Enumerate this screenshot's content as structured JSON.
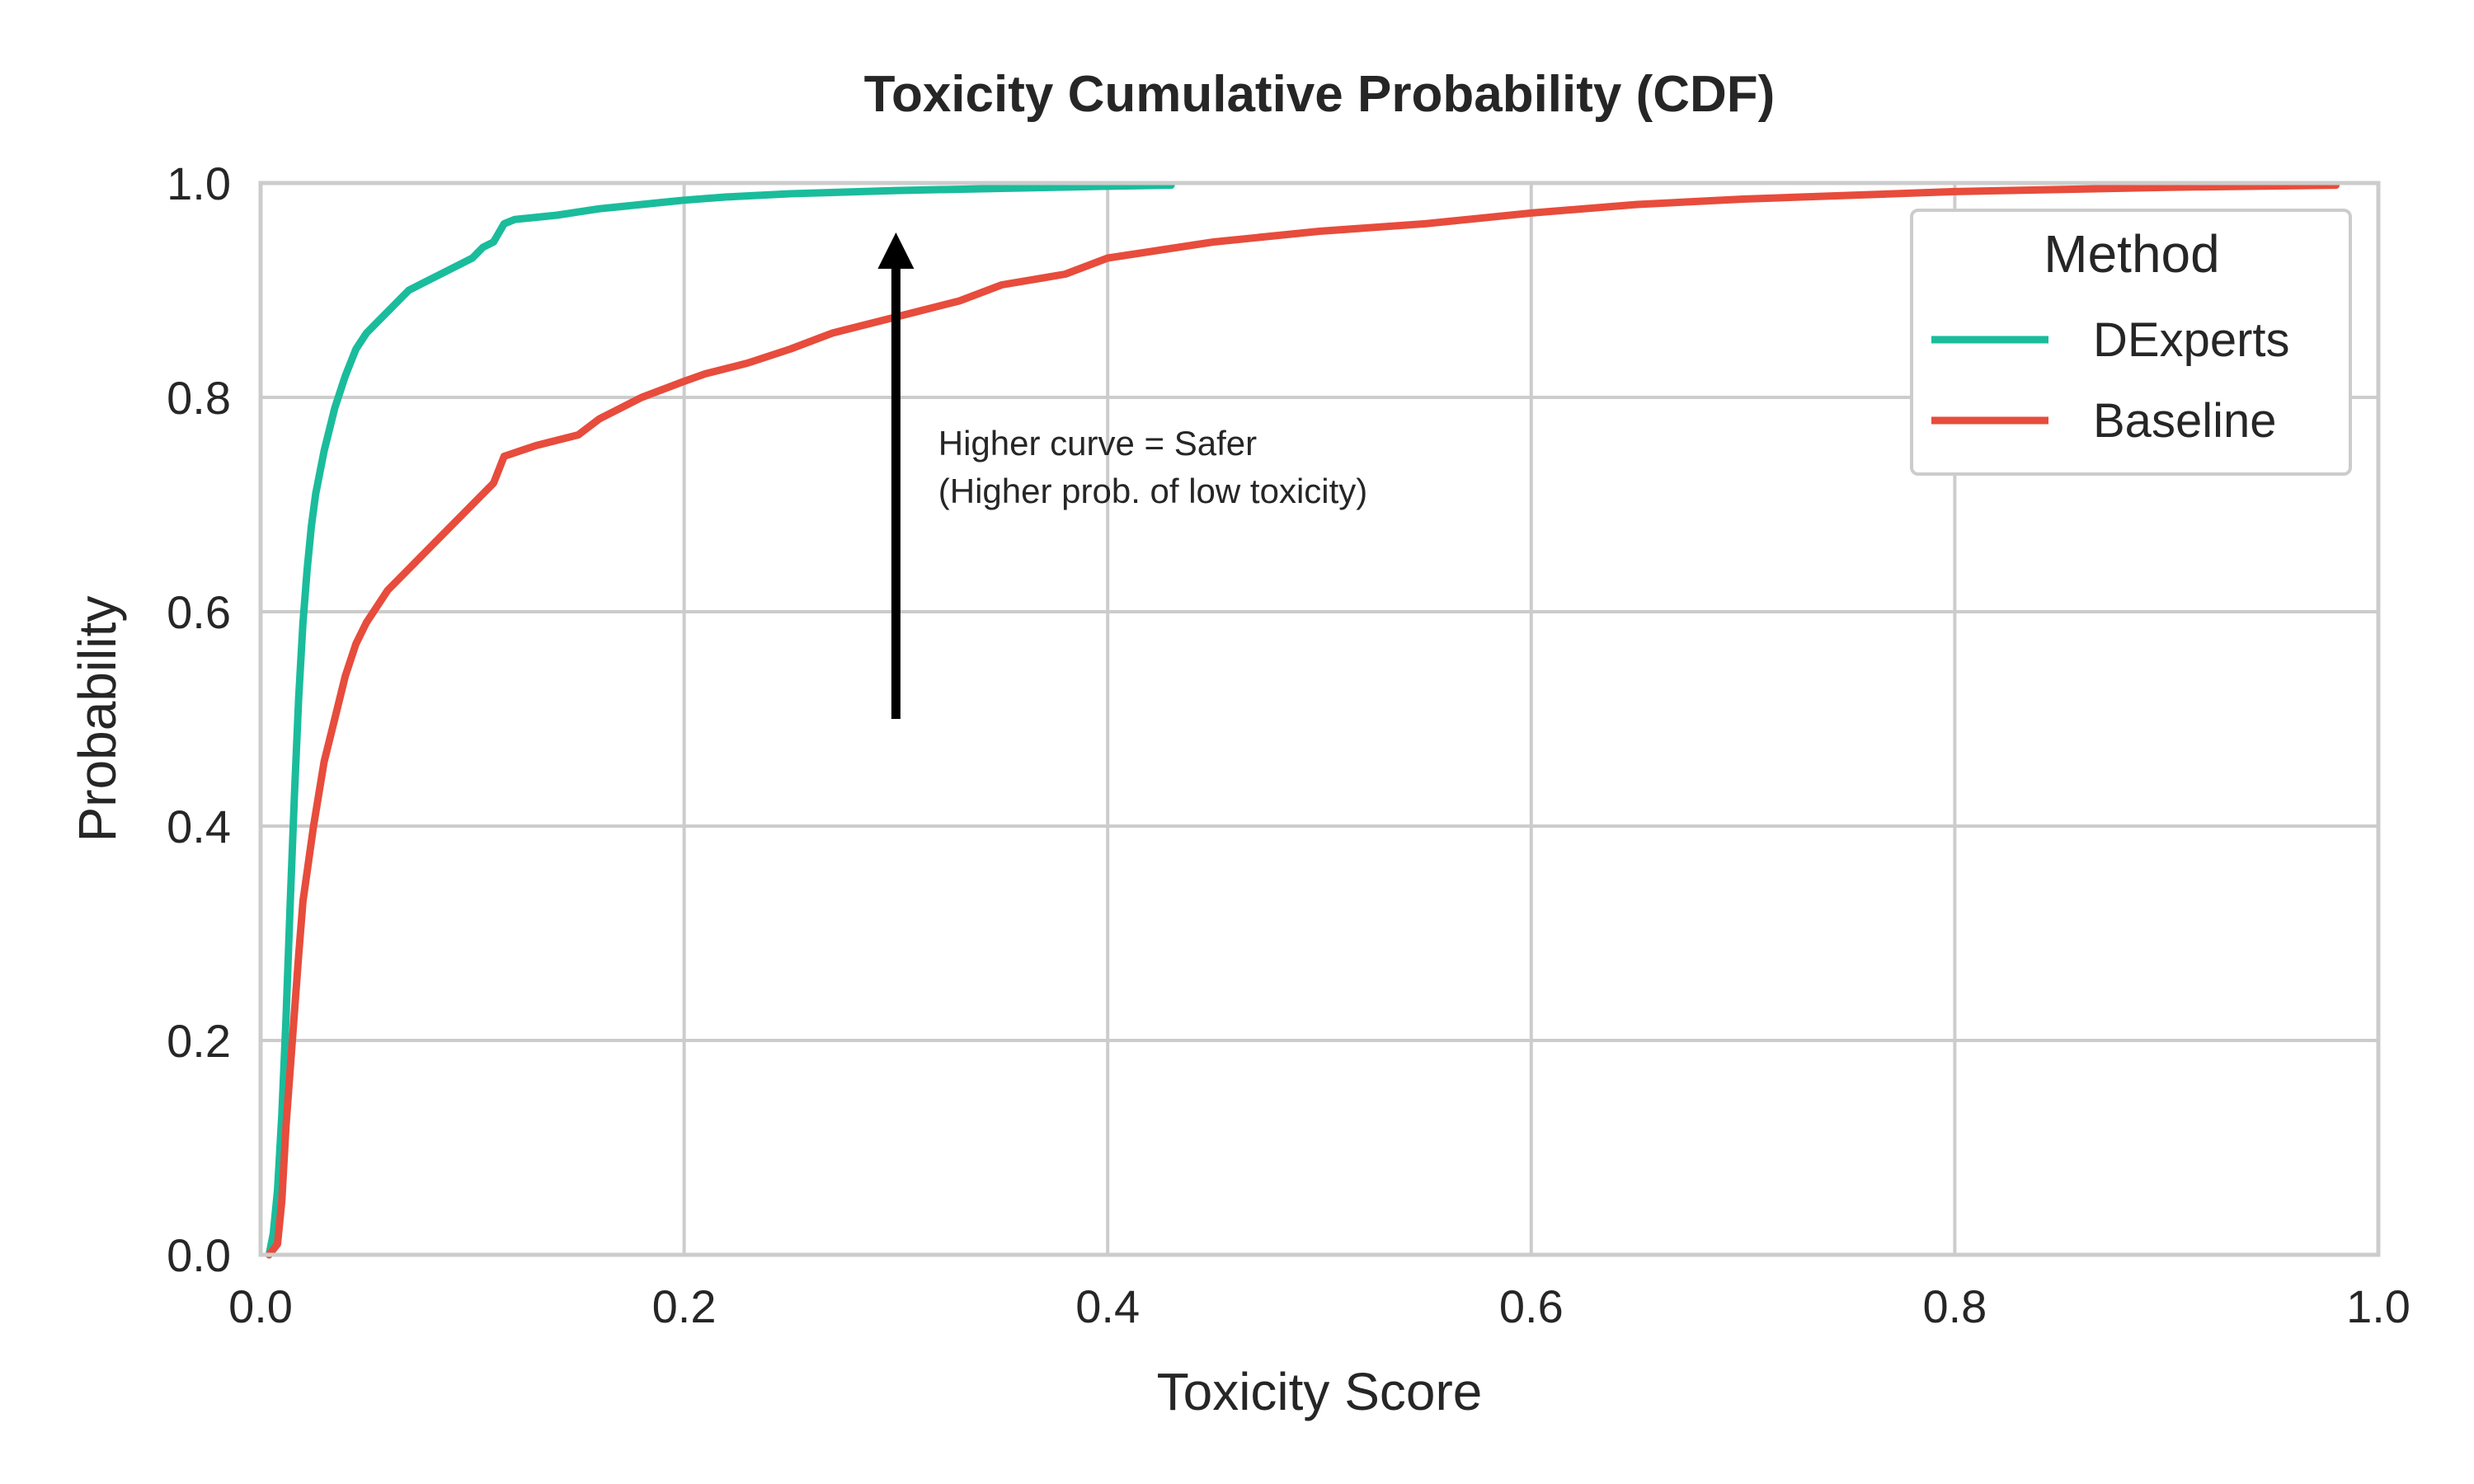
{
  "chart_data": {
    "type": "line",
    "title": "Toxicity Cumulative Probability (CDF)",
    "xlabel": "Toxicity Score",
    "ylabel": "Probability",
    "xlim": [
      0.0,
      1.0
    ],
    "ylim": [
      0.0,
      1.0
    ],
    "xticks": [
      "0.0",
      "0.2",
      "0.4",
      "0.6",
      "0.8",
      "1.0"
    ],
    "yticks": [
      "0.0",
      "0.2",
      "0.4",
      "0.6",
      "0.8",
      "1.0"
    ],
    "grid": true,
    "legend": {
      "title": "Method",
      "placement": "top-right"
    },
    "series": [
      {
        "name": "DExperts",
        "color": "#1abc9c",
        "x": [
          0.004,
          0.006,
          0.008,
          0.01,
          0.012,
          0.014,
          0.016,
          0.018,
          0.02,
          0.022,
          0.024,
          0.026,
          0.028,
          0.03,
          0.035,
          0.04,
          0.045,
          0.05,
          0.055,
          0.06,
          0.065,
          0.07,
          0.075,
          0.08,
          0.085,
          0.09,
          0.095,
          0.1,
          0.105,
          0.11,
          0.115,
          0.12,
          0.13,
          0.14,
          0.15,
          0.16,
          0.17,
          0.18,
          0.19,
          0.2,
          0.22,
          0.25,
          0.3,
          0.35,
          0.4,
          0.43
        ],
        "y": [
          0.0,
          0.02,
          0.06,
          0.13,
          0.22,
          0.33,
          0.43,
          0.52,
          0.59,
          0.64,
          0.68,
          0.71,
          0.73,
          0.75,
          0.79,
          0.82,
          0.845,
          0.86,
          0.87,
          0.88,
          0.89,
          0.9,
          0.905,
          0.91,
          0.915,
          0.92,
          0.925,
          0.93,
          0.94,
          0.945,
          0.962,
          0.966,
          0.968,
          0.97,
          0.973,
          0.976,
          0.978,
          0.98,
          0.982,
          0.984,
          0.987,
          0.99,
          0.993,
          0.995,
          0.997,
          0.998
        ]
      },
      {
        "name": "Baseline",
        "color": "#e74c3c",
        "x": [
          0.004,
          0.008,
          0.01,
          0.012,
          0.015,
          0.018,
          0.02,
          0.025,
          0.03,
          0.035,
          0.04,
          0.045,
          0.05,
          0.06,
          0.07,
          0.08,
          0.09,
          0.1,
          0.11,
          0.115,
          0.13,
          0.15,
          0.16,
          0.18,
          0.2,
          0.21,
          0.23,
          0.25,
          0.27,
          0.29,
          0.3,
          0.33,
          0.35,
          0.38,
          0.4,
          0.45,
          0.5,
          0.55,
          0.6,
          0.65,
          0.7,
          0.8,
          0.9,
          0.98
        ],
        "y": [
          0.0,
          0.01,
          0.05,
          0.12,
          0.2,
          0.28,
          0.33,
          0.4,
          0.46,
          0.5,
          0.54,
          0.57,
          0.59,
          0.62,
          0.64,
          0.66,
          0.68,
          0.7,
          0.72,
          0.745,
          0.755,
          0.765,
          0.78,
          0.8,
          0.815,
          0.822,
          0.832,
          0.845,
          0.86,
          0.87,
          0.875,
          0.89,
          0.905,
          0.915,
          0.93,
          0.945,
          0.955,
          0.962,
          0.972,
          0.98,
          0.985,
          0.992,
          0.996,
          0.998
        ]
      }
    ],
    "annotation": {
      "lines": [
        "Higher curve = Safer",
        "(Higher prob. of low toxicity)"
      ],
      "arrow_x": 0.3,
      "arrow_from_y": 0.5,
      "arrow_to_y": 0.96,
      "text_x": 0.32,
      "text_y": 0.75
    }
  }
}
